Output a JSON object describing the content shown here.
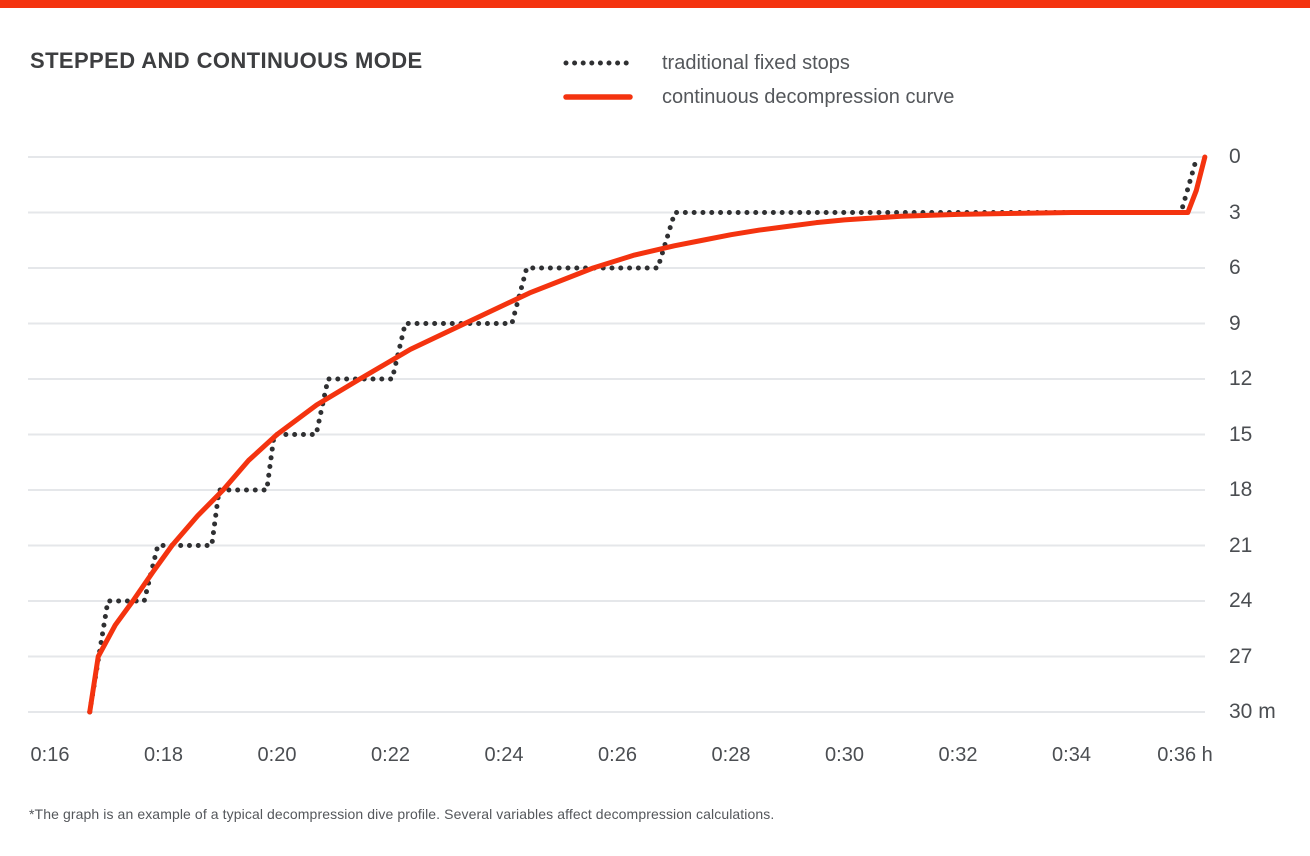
{
  "page": {
    "title": "STEPPED AND CONTINUOUS MODE",
    "footnote": "*The graph is an example of a typical decompression dive profile. Several variables affect decompression calculations."
  },
  "colors": {
    "accent_red": "#f4330f",
    "line_dark": "#2f3032",
    "gridline": "#e5e7ea",
    "title_text": "#3d3e40",
    "tick_text": "#4b4e52",
    "body_text": "#54575b"
  },
  "legend": {
    "position": "top-right of title row",
    "items": [
      {
        "label": "traditional fixed stops",
        "style": "dotted",
        "color": "#2f3032"
      },
      {
        "label": "continuous decompression curve",
        "style": "solid",
        "color": "#f4330f"
      }
    ]
  },
  "chart_data": {
    "type": "line",
    "title": "STEPPED AND CONTINUOUS MODE",
    "grid": "horizontal gridlines only",
    "legend_position": "top",
    "x_axis": {
      "unit": "h",
      "range_minutes": [
        15.6,
        36.6
      ],
      "ticks": [
        {
          "label": "0:16",
          "minutes": 16
        },
        {
          "label": "0:18",
          "minutes": 18
        },
        {
          "label": "0:20",
          "minutes": 20
        },
        {
          "label": "0:22",
          "minutes": 22
        },
        {
          "label": "0:24",
          "minutes": 24
        },
        {
          "label": "0:26",
          "minutes": 26
        },
        {
          "label": "0:28",
          "minutes": 28
        },
        {
          "label": "0:30",
          "minutes": 30
        },
        {
          "label": "0:32",
          "minutes": 32
        },
        {
          "label": "0:34",
          "minutes": 34
        },
        {
          "label": "0:36 h",
          "minutes": 36
        }
      ]
    },
    "y_axis": {
      "unit": "m",
      "side": "right",
      "inverted": true,
      "range": [
        0,
        30
      ],
      "ticks": [
        {
          "label": "0",
          "depth": 0
        },
        {
          "label": "3",
          "depth": 3
        },
        {
          "label": "6",
          "depth": 6
        },
        {
          "label": "9",
          "depth": 9
        },
        {
          "label": "12",
          "depth": 12
        },
        {
          "label": "15",
          "depth": 15
        },
        {
          "label": "18",
          "depth": 18
        },
        {
          "label": "21",
          "depth": 21
        },
        {
          "label": "24",
          "depth": 24
        },
        {
          "label": "27",
          "depth": 27
        },
        {
          "label": "30 m",
          "depth": 30
        }
      ]
    },
    "series": [
      {
        "name": "traditional fixed stops",
        "style": "dotted",
        "color": "#2f3032",
        "points_time_min_depth_m": [
          [
            16.7,
            30
          ],
          [
            17.02,
            24
          ],
          [
            17.66,
            24
          ],
          [
            17.9,
            21
          ],
          [
            18.85,
            21
          ],
          [
            18.98,
            18
          ],
          [
            19.82,
            18
          ],
          [
            19.95,
            15
          ],
          [
            20.69,
            15
          ],
          [
            20.9,
            12
          ],
          [
            22.03,
            12
          ],
          [
            22.26,
            9
          ],
          [
            24.14,
            9
          ],
          [
            24.4,
            6
          ],
          [
            26.71,
            6
          ],
          [
            27.01,
            3
          ],
          [
            35.93,
            3
          ],
          [
            36.21,
            0
          ]
        ]
      },
      {
        "name": "continuous decompression curve",
        "style": "solid",
        "color": "#f4330f",
        "points_time_min_depth_m": [
          [
            16.7,
            30
          ],
          [
            16.85,
            27
          ],
          [
            17.15,
            25.3
          ],
          [
            17.46,
            24
          ],
          [
            17.82,
            22.4
          ],
          [
            18.15,
            21
          ],
          [
            18.6,
            19.4
          ],
          [
            19.05,
            18
          ],
          [
            19.5,
            16.4
          ],
          [
            20.0,
            15
          ],
          [
            20.7,
            13.4
          ],
          [
            21.46,
            12
          ],
          [
            22.35,
            10.4
          ],
          [
            23.31,
            9
          ],
          [
            24.45,
            7.35
          ],
          [
            25.57,
            6
          ],
          [
            26.3,
            5.3
          ],
          [
            27.0,
            4.8
          ],
          [
            27.5,
            4.5
          ],
          [
            28.0,
            4.2
          ],
          [
            28.5,
            3.95
          ],
          [
            29.0,
            3.75
          ],
          [
            29.5,
            3.55
          ],
          [
            30.0,
            3.4
          ],
          [
            30.5,
            3.3
          ],
          [
            31.0,
            3.2
          ],
          [
            32.0,
            3.1
          ],
          [
            33.0,
            3.05
          ],
          [
            34.0,
            3.0
          ],
          [
            35.0,
            3.0
          ],
          [
            36.05,
            3.0
          ],
          [
            36.2,
            1.8
          ],
          [
            36.35,
            0
          ]
        ]
      }
    ]
  }
}
